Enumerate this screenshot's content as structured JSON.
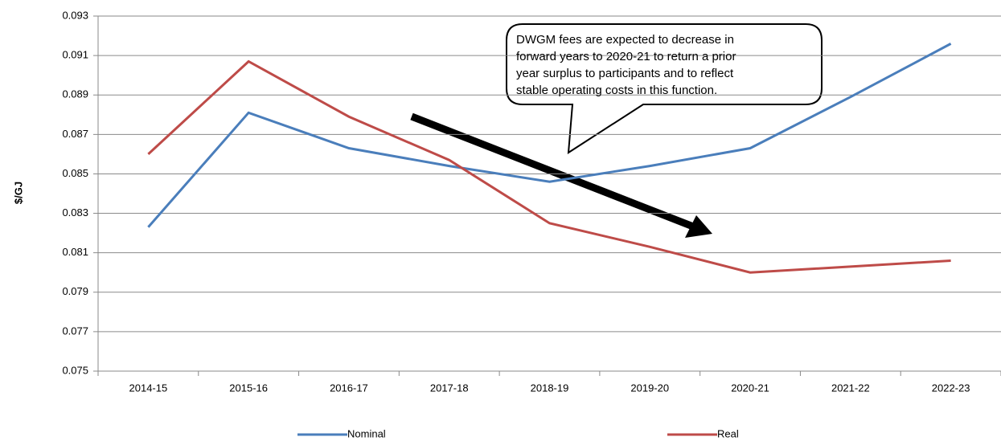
{
  "chart_data": {
    "type": "line",
    "ylabel": "$/GJ",
    "categories": [
      "2014-15",
      "2015-16",
      "2016-17",
      "2017-18",
      "2018-19",
      "2019-20",
      "2020-21",
      "2021-22",
      "2022-23"
    ],
    "series": [
      {
        "name": "Nominal",
        "color": "#4a7ebb",
        "values": [
          0.0823,
          0.0881,
          0.0863,
          0.0854,
          0.0846,
          0.0854,
          0.0863,
          0.0889,
          0.0916
        ]
      },
      {
        "name": "Real",
        "color": "#be4b48",
        "values": [
          0.086,
          0.0907,
          0.0879,
          0.0857,
          0.0825,
          0.0813,
          0.08,
          0.0803,
          0.0806
        ]
      }
    ],
    "ylim": [
      0.075,
      0.093
    ],
    "yticks": [
      0.075,
      0.077,
      0.079,
      0.081,
      0.083,
      0.085,
      0.087,
      0.089,
      0.091,
      0.093
    ],
    "grid": true,
    "legend": "bottom",
    "annotation": [
      "DWGM fees are expected to decrease in",
      "forward years to 2020-21 to return a prior",
      "year surplus to participants and to reflect",
      "stable operating costs in this function."
    ]
  }
}
